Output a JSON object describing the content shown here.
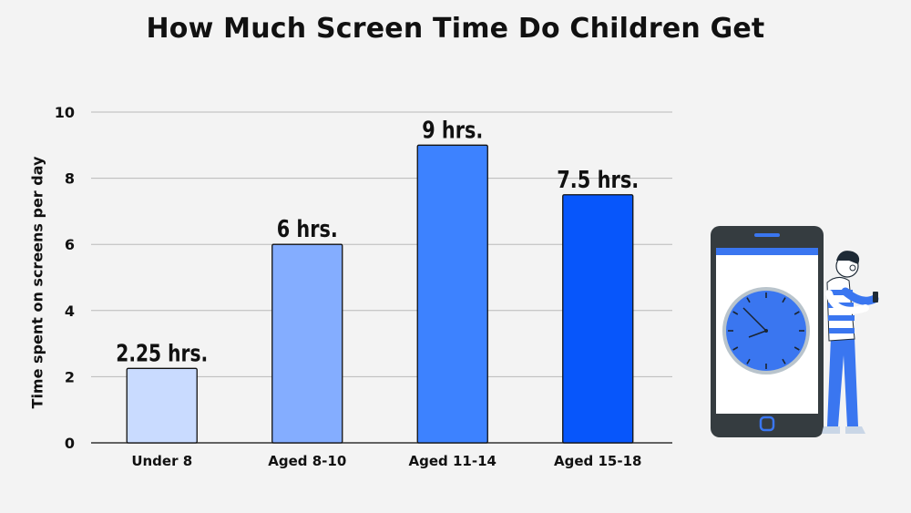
{
  "chart_data": {
    "type": "bar",
    "title": "How Much Screen Time Do Children Get",
    "xlabel": "",
    "ylabel": "Time spent on screens per day",
    "ylim": [
      0,
      10
    ],
    "yticks": [
      0,
      2,
      4,
      6,
      8,
      10
    ],
    "grid": true,
    "categories": [
      "Under 8",
      "Aged 8-10",
      "Aged 11-14",
      "Aged 15-18"
    ],
    "values": [
      2.25,
      6,
      9,
      7.5
    ],
    "data_labels": [
      "2.25 hrs.",
      "6 hrs.",
      "9 hrs.",
      "7.5 hrs."
    ],
    "bar_colors": [
      "#c9dbff",
      "#84adff",
      "#3d82ff",
      "#0756fb"
    ]
  },
  "illustration": {
    "name": "phone-with-clock-and-person",
    "colors": {
      "phone_body": "#353c40",
      "accent": "#3a76f0",
      "screen": "#ffffff"
    }
  }
}
